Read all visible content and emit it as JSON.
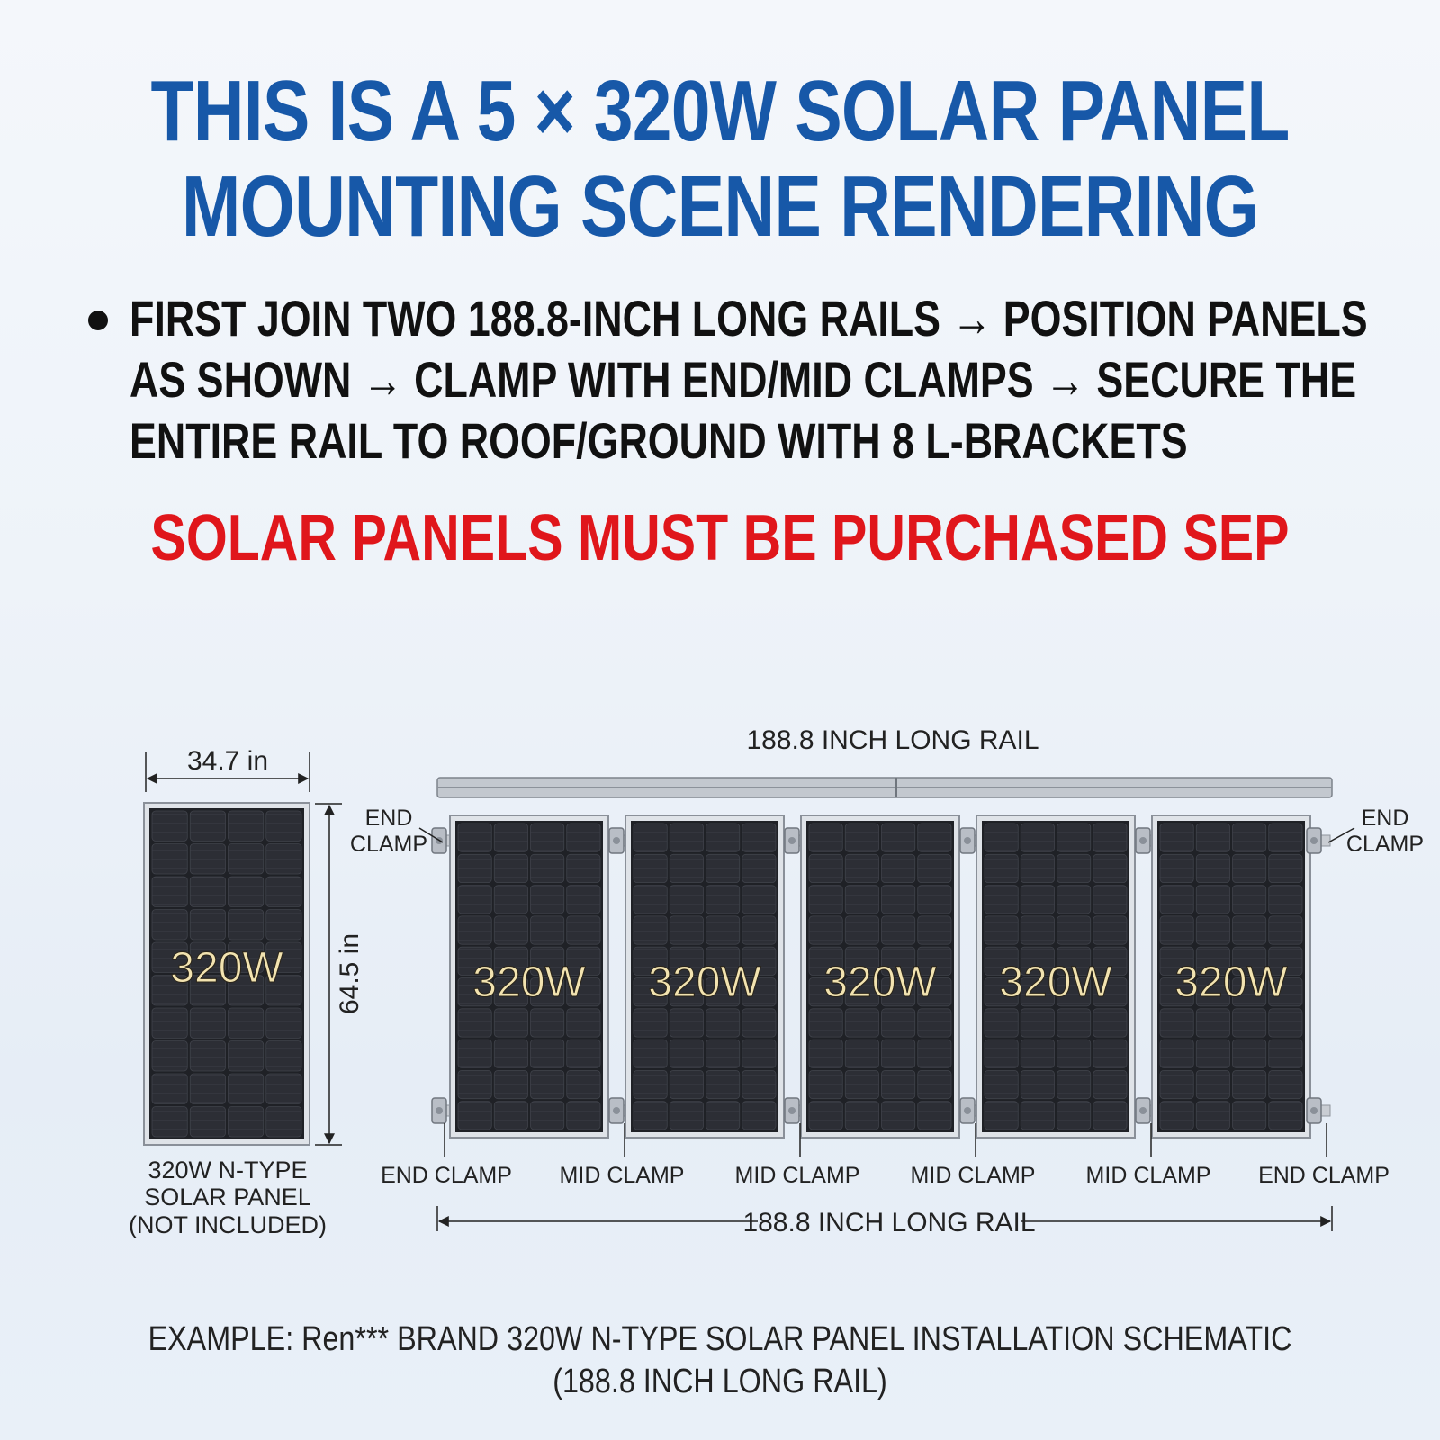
{
  "headline": {
    "line1": "THIS IS A  5 × 320W  SOLAR PANEL",
    "line2": "MOUNTING SCENE RENDERING"
  },
  "instructions": [
    "FIRST JOIN TWO 188.8-INCH LONG RAILS → POSITION PANELS",
    "AS SHOWN → CLAMP WITH END/MID CLAMPS → SECURE THE",
    "ENTIRE RAIL TO ROOF/GROUND WITH 8 L-BRACKETS"
  ],
  "warning": "SOLAR PANELS MUST BE PURCHASED SEP",
  "schematic": {
    "single_panel": {
      "width_label": "34.7 in",
      "height_label": "64.5 in",
      "wattage": "320W",
      "label_lines": [
        "320W N-TYPE",
        "SOLAR PANEL",
        "(NOT INCLUDED)"
      ]
    },
    "top_rail_label": "188.8 INCH LONG RAIL",
    "bottom_rail_label": "188.8 INCH LONG RAIL",
    "end_clamp_top": [
      "END",
      "CLAMP"
    ],
    "panels": [
      "320W",
      "320W",
      "320W",
      "320W",
      "320W"
    ],
    "bottom_clamp_labels": [
      "END CLAMP",
      "MID CLAMP",
      "MID CLAMP",
      "MID CLAMP",
      "MID CLAMP",
      "END CLAMP"
    ]
  },
  "caption": {
    "line1": "EXAMPLE: Ren*** BRAND 320W N-TYPE SOLAR PANEL INSTALLATION SCHEMATIC",
    "line2": "(188.8 INCH LONG RAIL)"
  },
  "colors": {
    "title_blue": "#1758a8",
    "warning_red": "#e0161b",
    "panel_cell": "#2b2d33",
    "panel_text": "#f2e3b0"
  }
}
